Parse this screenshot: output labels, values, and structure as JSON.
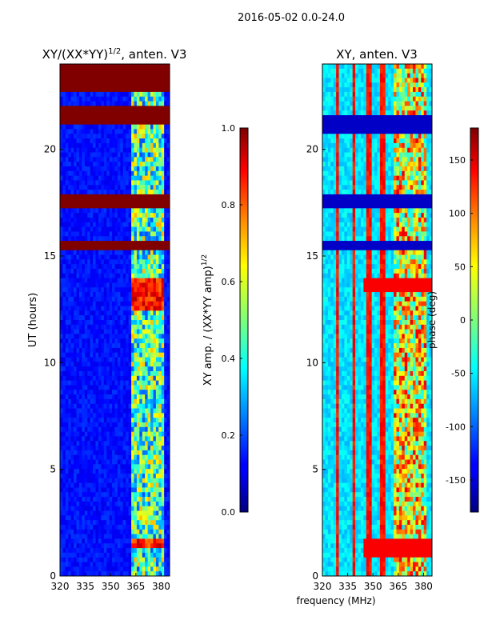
{
  "figure": {
    "suptitle": "2016-05-02 0.0-24.0",
    "xlabel": "frequency (MHz)"
  },
  "chart_data": [
    {
      "type": "heatmap",
      "title_main": "XY/(XX*YY)",
      "title_sup": "1/2",
      "title_suffix": ", anten. V3",
      "xlabel": "",
      "ylabel": "UT (hours)",
      "xlim": [
        320,
        385
      ],
      "ylim": [
        0,
        24
      ],
      "xticks": [
        320,
        335,
        350,
        365,
        380
      ],
      "yticks": [
        0,
        5,
        10,
        15,
        20
      ],
      "colormap": "jet",
      "colorbar": {
        "label_main": "XY amp. / (XX*YY amp)",
        "label_sup": "1/2",
        "range": [
          0.0,
          1.0
        ],
        "ticks": [
          "0.0",
          "0.2",
          "0.4",
          "0.6",
          "0.8",
          "1.0"
        ]
      },
      "saturated_time_bands_hours": [
        [
          22.8,
          24.0
        ],
        [
          21.2,
          22.0
        ],
        [
          17.2,
          17.9
        ],
        [
          15.2,
          15.7
        ]
      ],
      "high_amplitude_freq_range_mhz": [
        363,
        381
      ],
      "background_level": 0.1,
      "peak_level": 1.0
    },
    {
      "type": "heatmap",
      "title_main": "XY, anten. V3",
      "xlabel": "frequency (MHz)",
      "ylabel": "",
      "xlim": [
        320,
        385
      ],
      "ylim": [
        0,
        24
      ],
      "xticks": [
        320,
        335,
        350,
        365,
        380
      ],
      "yticks": [
        0,
        5,
        10,
        15,
        20
      ],
      "colormap": "jet",
      "colorbar": {
        "label_main": "phase (deg)",
        "range": [
          -180,
          180
        ],
        "ticks": [
          "-150",
          "-100",
          "-50",
          "0",
          "50",
          "100",
          "150"
        ]
      },
      "vertical_stripe_freqs_mhz": [
        329,
        339,
        348,
        356
      ],
      "phase_feature_hours": [
        13.6,
        1.3
      ],
      "gap_bands_hours": [
        [
          20.8,
          21.5
        ],
        [
          17.2,
          17.9
        ],
        [
          15.2,
          15.7
        ]
      ]
    }
  ]
}
